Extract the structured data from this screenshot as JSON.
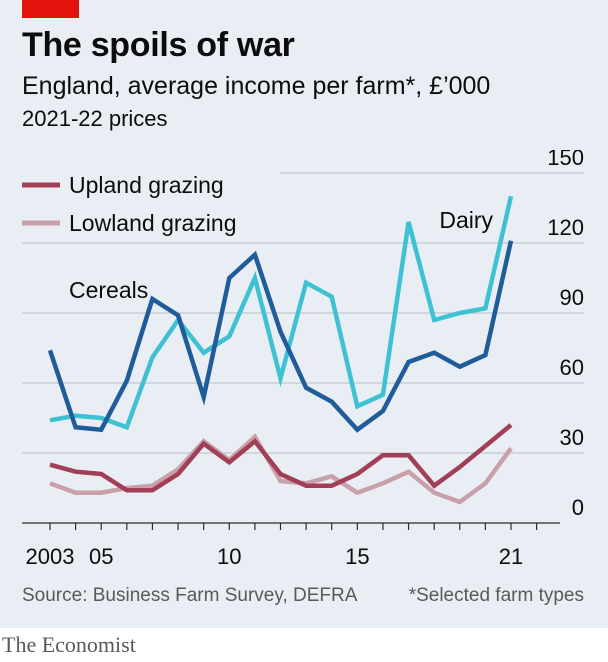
{
  "header": {
    "title": "The spoils of war",
    "subtitle": "England, average income per farm*, £’000",
    "prices_note": "2021-22 prices"
  },
  "footer": {
    "source": "Source: Business Farm Survey, DEFRA",
    "footnote": "*Selected farm types",
    "logo": "The Economist"
  },
  "chart_data": {
    "type": "line",
    "x": [
      2003,
      2004,
      2005,
      2006,
      2007,
      2008,
      2009,
      2010,
      2011,
      2012,
      2013,
      2014,
      2015,
      2016,
      2017,
      2018,
      2019,
      2020,
      2021
    ],
    "x_tick_values": [
      2003,
      2005,
      2010,
      2015,
      2021
    ],
    "x_tick_labels": [
      "2003",
      "05",
      "10",
      "15",
      "21"
    ],
    "ylim": [
      0,
      150
    ],
    "y_ticks": [
      0,
      30,
      60,
      90,
      120,
      150
    ],
    "y_tick_labels": [
      "0",
      "30",
      "60",
      "90",
      "120",
      "150"
    ],
    "series": [
      {
        "name": "Cereals",
        "color": "#1f5c99",
        "values": [
          74,
          41,
          40,
          61,
          96,
          89,
          54,
          105,
          115,
          82,
          58,
          52,
          40,
          48,
          69,
          73,
          67,
          72,
          121
        ]
      },
      {
        "name": "Dairy",
        "color": "#3ec1d3",
        "values": [
          44,
          46,
          45,
          41,
          71,
          87,
          73,
          80,
          105,
          62,
          103,
          97,
          50,
          55,
          129,
          87,
          90,
          92,
          140
        ]
      },
      {
        "name": "Upland grazing",
        "color": "#a03f55",
        "values": [
          25,
          22,
          21,
          14,
          14,
          21,
          34,
          26,
          35,
          21,
          16,
          16,
          21,
          29,
          29,
          16,
          24,
          33,
          42
        ]
      },
      {
        "name": "Lowland grazing",
        "color": "#c9a0a9",
        "values": [
          17,
          13,
          13,
          15,
          16,
          23,
          35,
          27,
          37,
          18,
          17,
          20,
          13,
          17,
          22,
          13,
          9,
          17,
          32
        ]
      }
    ],
    "legend": [
      "Upland grazing",
      "Lowland grazing"
    ],
    "direct_labels": [
      "Cereals",
      "Dairy"
    ],
    "grid": true,
    "y_axis_side": "right"
  }
}
